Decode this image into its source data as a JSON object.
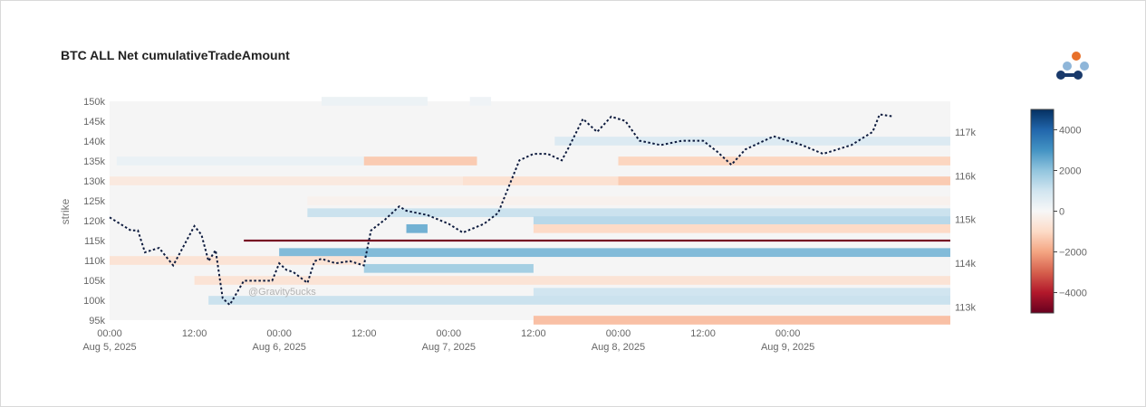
{
  "chart_data": {
    "type": "heatmap",
    "title": "BTC ALL Net cumulativeTradeAmount",
    "ylabel": "strike",
    "watermark": "@Gravity5ucks",
    "x_axis": {
      "range": [
        "2025-08-05 00:00",
        "2025-08-09 23:00"
      ],
      "ticks": [
        {
          "time": "00:00",
          "date": "Aug 5, 2025"
        },
        {
          "time": "12:00",
          "date": ""
        },
        {
          "time": "00:00",
          "date": "Aug 6, 2025"
        },
        {
          "time": "12:00",
          "date": ""
        },
        {
          "time": "00:00",
          "date": "Aug 7, 2025"
        },
        {
          "time": "12:00",
          "date": ""
        },
        {
          "time": "00:00",
          "date": "Aug 8, 2025"
        },
        {
          "time": "12:00",
          "date": ""
        },
        {
          "time": "00:00",
          "date": "Aug 9, 2025"
        }
      ]
    },
    "y_axis": {
      "range": [
        95000,
        150000
      ],
      "tick_labels": [
        "95k",
        "100k",
        "105k",
        "110k",
        "115k",
        "120k",
        "125k",
        "130k",
        "135k",
        "140k",
        "145k",
        "150k"
      ]
    },
    "y2_axis": {
      "range": [
        112700,
        117700
      ],
      "tick_labels": [
        "113k",
        "114k",
        "115k",
        "116k",
        "117k"
      ]
    },
    "colorbar": {
      "range": [
        -5000,
        5000
      ],
      "tick_labels": [
        "4000",
        "2000",
        "0",
        "−2000",
        "−4000"
      ],
      "colorscale": [
        "#67001f",
        "#b2182b",
        "#d6604d",
        "#f4a582",
        "#fddbc7",
        "#f7f7f7",
        "#d1e5f0",
        "#92c5de",
        "#4393c3",
        "#2166ac",
        "#053061"
      ]
    },
    "heatmap_bands": [
      {
        "strike": 150000,
        "start": "2025-08-06 06:00",
        "end": "2025-08-06 21:00",
        "value": 300
      },
      {
        "strike": 150000,
        "start": "2025-08-07 03:00",
        "end": "2025-08-07 06:00",
        "value": 200
      },
      {
        "strike": 140000,
        "start": "2025-08-07 15:00",
        "end": "2025-08-09 23:00",
        "value": 700
      },
      {
        "strike": 135000,
        "start": "2025-08-05 01:00",
        "end": "2025-08-06 12:00",
        "value": 350
      },
      {
        "strike": 135000,
        "start": "2025-08-06 12:00",
        "end": "2025-08-07 04:00",
        "value": -1300
      },
      {
        "strike": 135000,
        "start": "2025-08-08 00:00",
        "end": "2025-08-09 23:00",
        "value": -1100
      },
      {
        "strike": 130000,
        "start": "2025-08-05 00:00",
        "end": "2025-08-07 02:00",
        "value": -500
      },
      {
        "strike": 130000,
        "start": "2025-08-07 02:00",
        "end": "2025-08-08 00:00",
        "value": -800
      },
      {
        "strike": 130000,
        "start": "2025-08-08 00:00",
        "end": "2025-08-09 23:00",
        "value": -1300
      },
      {
        "strike": 125000,
        "start": "2025-08-06 04:00",
        "end": "2025-08-09 23:00",
        "value": -200
      },
      {
        "strike": 122000,
        "start": "2025-08-06 04:00",
        "end": "2025-08-09 23:00",
        "value": 1100
      },
      {
        "strike": 120000,
        "start": "2025-08-07 12:00",
        "end": "2025-08-09 23:00",
        "value": 1400
      },
      {
        "strike": 118000,
        "start": "2025-08-06 18:00",
        "end": "2025-08-06 21:00",
        "value": 2400
      },
      {
        "strike": 118000,
        "start": "2025-08-07 12:00",
        "end": "2025-08-09 23:00",
        "value": -1000
      },
      {
        "strike": 115000,
        "start": "2025-08-05 19:00",
        "end": "2025-08-09 23:00",
        "value": -4800
      },
      {
        "strike": 112000,
        "start": "2025-08-06 00:00",
        "end": "2025-08-09 23:00",
        "value": 2200
      },
      {
        "strike": 110000,
        "start": "2025-08-05 00:00",
        "end": "2025-08-06 12:00",
        "value": -700
      },
      {
        "strike": 108000,
        "start": "2025-08-06 12:00",
        "end": "2025-08-07 12:00",
        "value": 1700
      },
      {
        "strike": 105000,
        "start": "2025-08-05 12:00",
        "end": "2025-08-09 23:00",
        "value": -700
      },
      {
        "strike": 102000,
        "start": "2025-08-07 12:00",
        "end": "2025-08-09 23:00",
        "value": 1000
      },
      {
        "strike": 100000,
        "start": "2025-08-05 14:00",
        "end": "2025-08-09 23:00",
        "value": 1100
      },
      {
        "strike": 95000,
        "start": "2025-08-07 12:00",
        "end": "2025-08-09 23:00",
        "value": -1500
      }
    ],
    "btc_price": {
      "name": "BTC price",
      "style": "dotted",
      "color": "#0d1b3e",
      "points": [
        [
          "2025-08-05 00:00",
          115050
        ],
        [
          "2025-08-05 03:00",
          114750
        ],
        [
          "2025-08-05 04:00",
          114750
        ],
        [
          "2025-08-05 05:00",
          114250
        ],
        [
          "2025-08-05 07:00",
          114350
        ],
        [
          "2025-08-05 09:00",
          113950
        ],
        [
          "2025-08-05 12:00",
          114850
        ],
        [
          "2025-08-05 13:00",
          114650
        ],
        [
          "2025-08-05 14:00",
          114050
        ],
        [
          "2025-08-05 15:00",
          114300
        ],
        [
          "2025-08-05 16:00",
          113200
        ],
        [
          "2025-08-05 17:00",
          113050
        ],
        [
          "2025-08-05 19:00",
          113600
        ],
        [
          "2025-08-05 21:00",
          113600
        ],
        [
          "2025-08-05 23:00",
          113600
        ],
        [
          "2025-08-06 00:00",
          114000
        ],
        [
          "2025-08-06 01:00",
          113850
        ],
        [
          "2025-08-06 02:00",
          113800
        ],
        [
          "2025-08-06 04:00",
          113550
        ],
        [
          "2025-08-06 05:00",
          114050
        ],
        [
          "2025-08-06 06:00",
          114100
        ],
        [
          "2025-08-06 08:00",
          114000
        ],
        [
          "2025-08-06 10:00",
          114050
        ],
        [
          "2025-08-06 12:00",
          113950
        ],
        [
          "2025-08-06 13:00",
          114750
        ],
        [
          "2025-08-06 15:00",
          115000
        ],
        [
          "2025-08-06 17:00",
          115300
        ],
        [
          "2025-08-06 18:00",
          115200
        ],
        [
          "2025-08-06 21:00",
          115100
        ],
        [
          "2025-08-07 00:00",
          114900
        ],
        [
          "2025-08-07 02:00",
          114700
        ],
        [
          "2025-08-07 05:00",
          114900
        ],
        [
          "2025-08-07 07:00",
          115150
        ],
        [
          "2025-08-07 10:00",
          116350
        ],
        [
          "2025-08-07 12:00",
          116500
        ],
        [
          "2025-08-07 14:00",
          116500
        ],
        [
          "2025-08-07 16:00",
          116350
        ],
        [
          "2025-08-07 17:00",
          116650
        ],
        [
          "2025-08-07 19:00",
          117300
        ],
        [
          "2025-08-07 21:00",
          117000
        ],
        [
          "2025-08-07 23:00",
          117350
        ],
        [
          "2025-08-08 01:00",
          117250
        ],
        [
          "2025-08-08 03:00",
          116800
        ],
        [
          "2025-08-08 06:00",
          116700
        ],
        [
          "2025-08-08 09:00",
          116800
        ],
        [
          "2025-08-08 12:00",
          116800
        ],
        [
          "2025-08-08 14:00",
          116550
        ],
        [
          "2025-08-08 16:00",
          116250
        ],
        [
          "2025-08-08 18:00",
          116600
        ],
        [
          "2025-08-08 22:00",
          116900
        ],
        [
          "2025-08-09 02:00",
          116700
        ],
        [
          "2025-08-09 05:00",
          116500
        ],
        [
          "2025-08-09 09:00",
          116700
        ],
        [
          "2025-08-09 11:00",
          116900
        ],
        [
          "2025-08-09 12:00",
          117000
        ],
        [
          "2025-08-09 13:00",
          117400
        ],
        [
          "2025-08-09 15:00",
          117350
        ]
      ]
    },
    "grid": false,
    "legend": "none",
    "colorbar_position": "right"
  },
  "logo": {
    "name": "brand-logo",
    "colors": {
      "dot": "#e8702a",
      "light": "#8fb6d9",
      "dark": "#1a3a6b"
    }
  }
}
